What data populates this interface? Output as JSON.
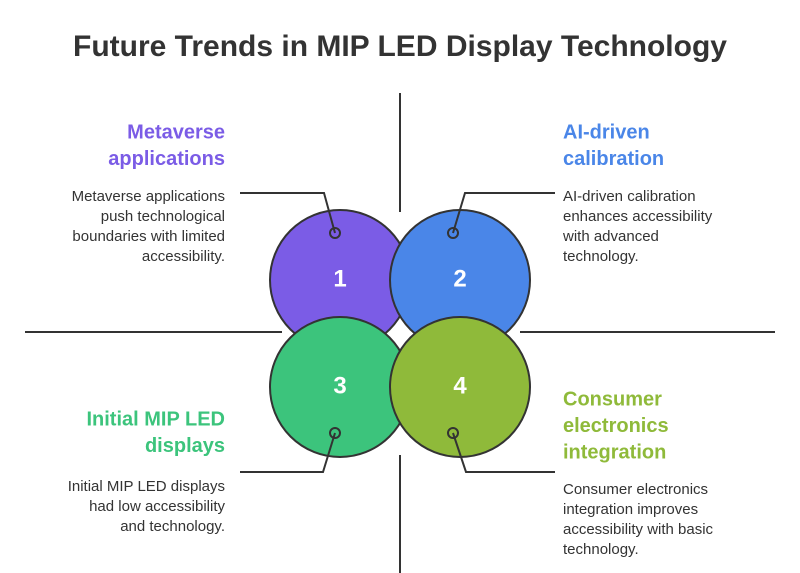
{
  "header": {
    "title": "Future Trends in MIP LED Display Technology"
  },
  "quadrants": [
    {
      "number": "1",
      "title": [
        "Metaverse",
        "applications"
      ],
      "description": [
        "Metaverse applications",
        "push technological",
        "boundaries with limited",
        "accessibility."
      ]
    },
    {
      "number": "2",
      "title": [
        "AI-driven",
        "calibration"
      ],
      "description": [
        "AI-driven calibration",
        "enhances accessibility",
        "with advanced",
        "technology."
      ]
    },
    {
      "number": "3",
      "title": [
        "Initial MIP LED",
        "displays"
      ],
      "description": [
        "Initial MIP LED displays",
        "had low accessibility",
        "and technology."
      ]
    },
    {
      "number": "4",
      "title": [
        "Consumer",
        "electronics",
        "integration"
      ],
      "description": [
        "Consumer electronics",
        "integration improves",
        "accessibility with basic",
        "technology."
      ]
    }
  ]
}
